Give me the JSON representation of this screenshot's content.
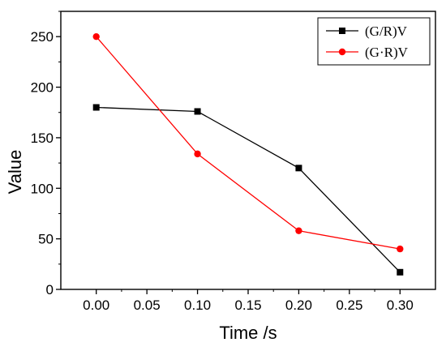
{
  "chart_data": {
    "type": "line",
    "xlabel": "Time /s",
    "ylabel": "Value",
    "xlim": [
      -0.035,
      0.335
    ],
    "ylim": [
      0,
      275
    ],
    "x_ticks": [
      "0.00",
      "0.05",
      "0.10",
      "0.15",
      "0.20",
      "0.25",
      "0.30"
    ],
    "y_ticks": [
      "0",
      "50",
      "100",
      "150",
      "200",
      "250"
    ],
    "legend_position": "top-right",
    "grid": false,
    "series": [
      {
        "name": "(G/R)V",
        "color": "#000000",
        "marker": "square",
        "x": [
          0.0,
          0.1,
          0.2,
          0.3
        ],
        "y": [
          180,
          176,
          120,
          17
        ]
      },
      {
        "name": "(G·R)V",
        "color": "#ff0000",
        "marker": "circle",
        "x": [
          0.0,
          0.1,
          0.2,
          0.3
        ],
        "y": [
          250,
          134,
          58,
          40
        ]
      }
    ]
  }
}
